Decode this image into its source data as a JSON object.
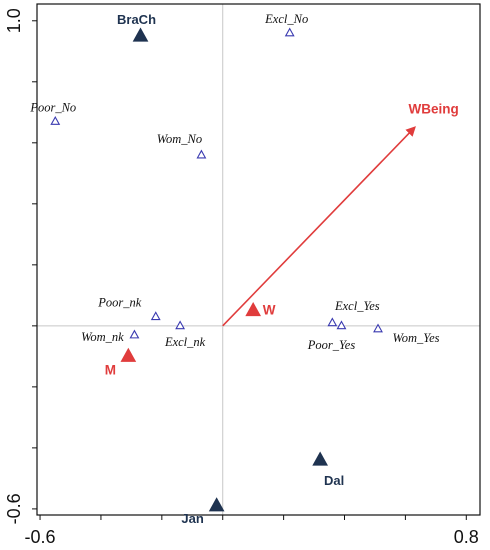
{
  "chart_data": {
    "type": "scatter",
    "title": "",
    "xlabel": "",
    "ylabel": "",
    "xlim": [
      -0.6,
      0.8
    ],
    "ylim": [
      -0.6,
      1.0
    ],
    "x_tick_labels": [
      "-0.6",
      "0.8"
    ],
    "y_tick_labels": [
      "1.0",
      "-0.6"
    ],
    "grid": false,
    "zero_lines": true,
    "colors": {
      "species": "#3a3ab0",
      "samples": "#1f3350",
      "env": "#e03c3c",
      "zero_line": "#c8c8c8"
    },
    "species": [
      {
        "label": "Excl_No",
        "x": 0.22,
        "y": 0.96
      },
      {
        "label": "Poor_No",
        "x": -0.55,
        "y": 0.67
      },
      {
        "label": "Wom_No",
        "x": -0.07,
        "y": 0.56
      },
      {
        "label": "Poor_nk",
        "x": -0.22,
        "y": 0.03
      },
      {
        "label": "Wom_nk",
        "x": -0.29,
        "y": -0.03
      },
      {
        "label": "Excl_nk",
        "x": -0.14,
        "y": 0.0
      },
      {
        "label": "Excl_Yes",
        "x": 0.36,
        "y": 0.01
      },
      {
        "label": "Poor_Yes",
        "x": 0.39,
        "y": 0.0
      },
      {
        "label": "Wom_Yes",
        "x": 0.51,
        "y": -0.01
      }
    ],
    "samples": [
      {
        "label": "BraCh",
        "x": -0.27,
        "y": 0.95
      },
      {
        "label": "Dal",
        "x": 0.32,
        "y": -0.44
      },
      {
        "label": "Jan",
        "x": -0.02,
        "y": -0.59
      }
    ],
    "env_points": [
      {
        "label": "W",
        "x": 0.1,
        "y": 0.05
      },
      {
        "label": "M",
        "x": -0.31,
        "y": -0.1
      }
    ],
    "env_vectors": [
      {
        "label": "WBeing",
        "x": 0.63,
        "y": 0.65
      }
    ]
  }
}
